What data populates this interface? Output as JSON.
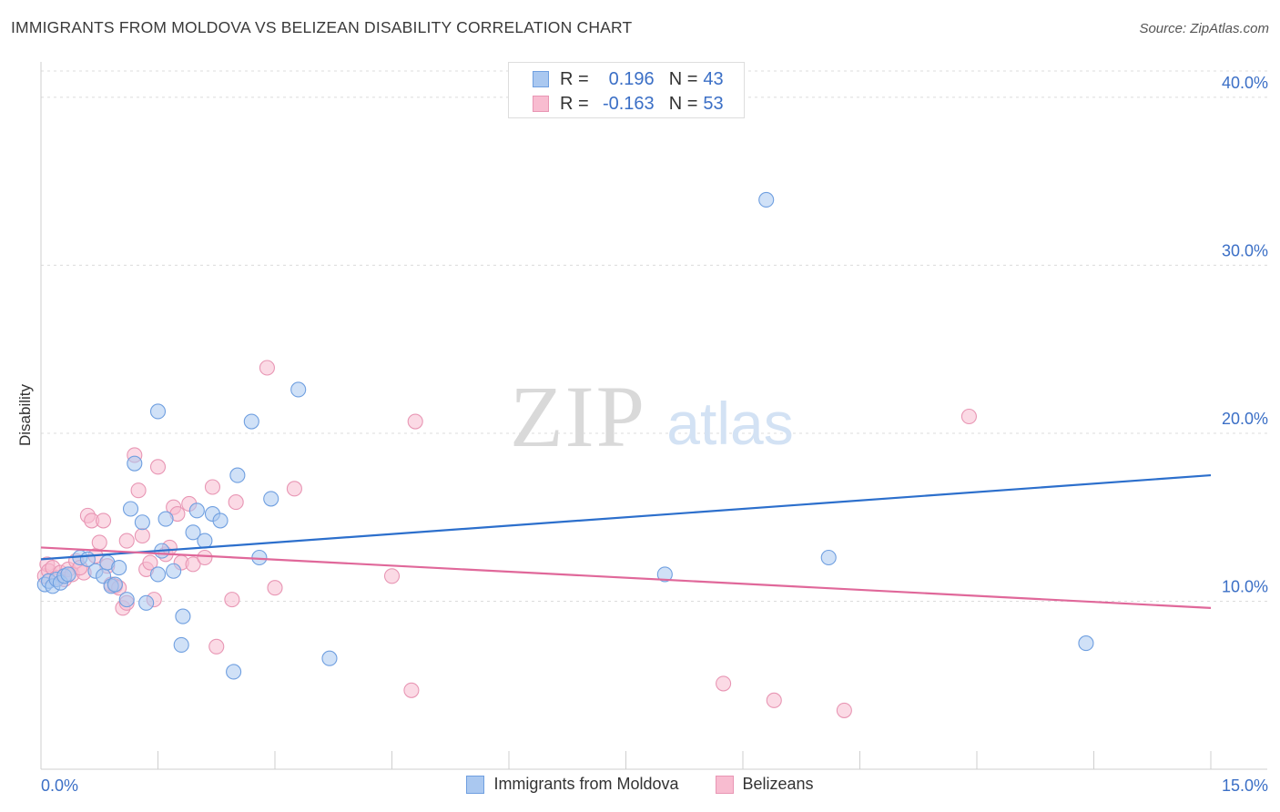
{
  "header": {
    "title": "IMMIGRANTS FROM MOLDOVA VS BELIZEAN DISABILITY CORRELATION CHART",
    "source": "Source: ZipAtlas.com"
  },
  "watermark": {
    "zip": "ZIP",
    "atlas": "atlas"
  },
  "legend_top": {
    "r_label": "R =",
    "n_label": "N =",
    "rows": [
      {
        "r": "0.196",
        "n": "43"
      },
      {
        "r": "-0.163",
        "n": "53"
      }
    ]
  },
  "colors": {
    "blue_fill": "#aac8f0",
    "blue_stroke": "#6f9fe0",
    "blue_line": "#2c6fcc",
    "pink_fill": "#f8bcd0",
    "pink_stroke": "#e896b4",
    "pink_line": "#e0689a",
    "tick_text": "#3b6fc6",
    "grid": "#dcdcdc"
  },
  "chart_data": {
    "type": "scatter",
    "title": "IMMIGRANTS FROM MOLDOVA VS BELIZEAN DISABILITY CORRELATION CHART",
    "xlabel": "",
    "ylabel": "Disability",
    "xlim": [
      0,
      15
    ],
    "ylim": [
      0,
      42
    ],
    "x_tick_labels": [
      "0.0%",
      "15.0%"
    ],
    "y_ticks": [
      10,
      20,
      30,
      40
    ],
    "y_tick_labels": [
      "10.0%",
      "20.0%",
      "30.0%",
      "40.0%"
    ],
    "grid": "horizontal dashed",
    "legend_position": "bottom",
    "series": [
      {
        "name": "Immigrants from Moldova",
        "color": "#aac8f0",
        "points": [
          [
            0.05,
            11.0
          ],
          [
            0.1,
            11.2
          ],
          [
            0.15,
            10.9
          ],
          [
            0.2,
            11.3
          ],
          [
            0.25,
            11.1
          ],
          [
            0.3,
            11.5
          ],
          [
            0.35,
            11.6
          ],
          [
            0.5,
            12.6
          ],
          [
            0.6,
            12.5
          ],
          [
            0.7,
            11.8
          ],
          [
            0.8,
            11.5
          ],
          [
            0.85,
            12.3
          ],
          [
            0.9,
            10.9
          ],
          [
            0.95,
            11.0
          ],
          [
            1.0,
            12.0
          ],
          [
            1.1,
            10.1
          ],
          [
            1.15,
            15.5
          ],
          [
            1.2,
            18.2
          ],
          [
            1.3,
            14.7
          ],
          [
            1.35,
            9.9
          ],
          [
            1.5,
            11.6
          ],
          [
            1.5,
            21.3
          ],
          [
            1.55,
            13.0
          ],
          [
            1.6,
            14.9
          ],
          [
            1.7,
            11.8
          ],
          [
            1.8,
            7.4
          ],
          [
            1.82,
            9.1
          ],
          [
            1.95,
            14.1
          ],
          [
            2.0,
            15.4
          ],
          [
            2.1,
            13.6
          ],
          [
            2.2,
            15.2
          ],
          [
            2.3,
            14.8
          ],
          [
            2.47,
            5.8
          ],
          [
            2.52,
            17.5
          ],
          [
            2.7,
            20.7
          ],
          [
            2.8,
            12.6
          ],
          [
            2.95,
            16.1
          ],
          [
            3.3,
            22.6
          ],
          [
            3.7,
            6.6
          ],
          [
            8.0,
            11.6
          ],
          [
            9.3,
            33.9
          ],
          [
            10.1,
            12.6
          ],
          [
            13.4,
            7.5
          ]
        ]
      },
      {
        "name": "Belizeans",
        "color": "#f8bcd0",
        "points": [
          [
            0.05,
            11.5
          ],
          [
            0.08,
            12.2
          ],
          [
            0.1,
            11.8
          ],
          [
            0.15,
            12.0
          ],
          [
            0.2,
            11.4
          ],
          [
            0.25,
            11.7
          ],
          [
            0.3,
            11.3
          ],
          [
            0.35,
            11.9
          ],
          [
            0.4,
            11.6
          ],
          [
            0.45,
            12.4
          ],
          [
            0.55,
            11.7
          ],
          [
            0.6,
            15.1
          ],
          [
            0.65,
            14.8
          ],
          [
            0.7,
            12.7
          ],
          [
            0.75,
            13.5
          ],
          [
            0.8,
            14.8
          ],
          [
            0.85,
            12.1
          ],
          [
            0.9,
            11.0
          ],
          [
            0.95,
            10.9
          ],
          [
            1.0,
            10.8
          ],
          [
            1.05,
            9.6
          ],
          [
            1.1,
            9.9
          ],
          [
            1.1,
            13.6
          ],
          [
            1.2,
            18.7
          ],
          [
            1.25,
            16.6
          ],
          [
            1.3,
            13.9
          ],
          [
            1.35,
            11.9
          ],
          [
            1.4,
            12.3
          ],
          [
            1.45,
            10.1
          ],
          [
            1.5,
            18.0
          ],
          [
            1.6,
            12.8
          ],
          [
            1.65,
            13.2
          ],
          [
            1.7,
            15.6
          ],
          [
            1.75,
            15.2
          ],
          [
            1.8,
            12.3
          ],
          [
            1.9,
            15.8
          ],
          [
            1.95,
            12.2
          ],
          [
            2.1,
            12.6
          ],
          [
            2.2,
            16.8
          ],
          [
            2.25,
            7.3
          ],
          [
            2.45,
            10.1
          ],
          [
            2.5,
            15.9
          ],
          [
            2.9,
            23.9
          ],
          [
            3.0,
            10.8
          ],
          [
            3.25,
            16.7
          ],
          [
            4.5,
            11.5
          ],
          [
            4.75,
            4.7
          ],
          [
            4.8,
            20.7
          ],
          [
            8.75,
            5.1
          ],
          [
            9.4,
            4.1
          ],
          [
            10.3,
            3.5
          ],
          [
            11.9,
            21.0
          ],
          [
            0.5,
            12.0
          ]
        ]
      }
    ],
    "trend_lines": [
      {
        "series": "Immigrants from Moldova",
        "x": [
          0,
          15
        ],
        "y": [
          12.5,
          17.5
        ]
      },
      {
        "series": "Belizeans",
        "x": [
          0,
          15
        ],
        "y": [
          13.2,
          9.6
        ]
      }
    ]
  }
}
